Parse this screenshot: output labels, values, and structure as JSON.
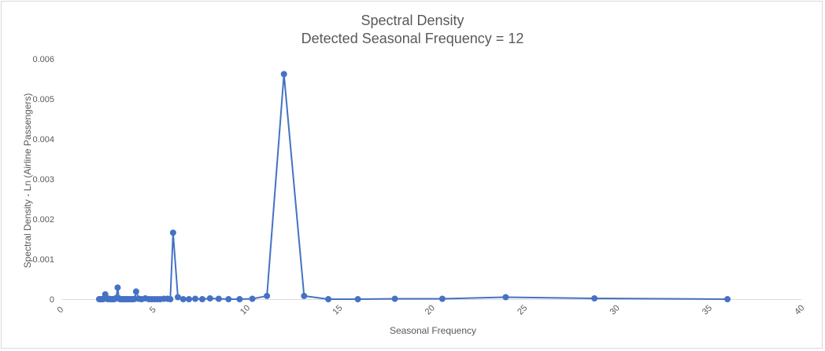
{
  "chart_data": {
    "type": "scatter",
    "title": "Spectral Density",
    "subtitle": "Detected Seasonal Frequency = 12",
    "xlabel": "Seasonal Frequency",
    "ylabel": "Spectral Density - Ln (Airline Passengers)",
    "xlim": [
      0,
      40
    ],
    "ylim": [
      0,
      0.006
    ],
    "x_ticks": [
      "0",
      "5",
      "10",
      "15",
      "20",
      "25",
      "30",
      "35",
      "40"
    ],
    "y_ticks": [
      "0",
      "0.001",
      "0.002",
      "0.003",
      "0.004",
      "0.005",
      "0.006"
    ],
    "grid": false,
    "legend": "none",
    "series_color": "#4472c4",
    "series": [
      {
        "mode": "lines+markers",
        "x": [
          2.0,
          2.07,
          2.13,
          2.2,
          2.27,
          2.33,
          2.4,
          2.47,
          2.53,
          2.6,
          2.67,
          2.73,
          2.8,
          2.87,
          2.93,
          3.0,
          3.07,
          3.13,
          3.2,
          3.27,
          3.33,
          3.4,
          3.47,
          3.53,
          3.6,
          3.67,
          3.73,
          3.8,
          3.87,
          3.93,
          4.0,
          4.15,
          4.3,
          4.5,
          4.7,
          4.85,
          5.0,
          5.15,
          5.3,
          5.5,
          5.7,
          5.85,
          6.0,
          6.26,
          6.55,
          6.86,
          7.2,
          7.58,
          8.0,
          8.47,
          9.0,
          9.6,
          10.29,
          11.08,
          12.0,
          13.09,
          14.4,
          16.0,
          18.0,
          20.57,
          24.0,
          28.8,
          36.0
        ],
        "y": [
          0.0,
          0.0,
          0.0,
          0.0,
          1e-05,
          0.00012,
          2e-05,
          0.0,
          1e-05,
          0.0,
          0.0,
          0.0,
          0.0,
          1e-05,
          3e-05,
          0.00029,
          2e-05,
          0.0,
          0.0,
          0.0,
          0.0,
          0.0,
          0.0,
          0.0,
          0.0,
          0.0,
          0.0,
          0.0,
          0.0,
          1e-05,
          0.00019,
          1e-05,
          0.0,
          2e-05,
          0.0,
          0.0,
          0.0,
          0.0,
          0.0,
          1e-05,
          1e-05,
          0.0,
          0.00166,
          5e-05,
          0.0,
          0.0,
          1e-05,
          0.0,
          2e-05,
          1e-05,
          0.0,
          0.0,
          1e-05,
          8e-05,
          0.00562,
          8e-05,
          0.0,
          0.0,
          1e-05,
          1e-05,
          5e-05,
          2e-05,
          0.0
        ]
      }
    ]
  }
}
